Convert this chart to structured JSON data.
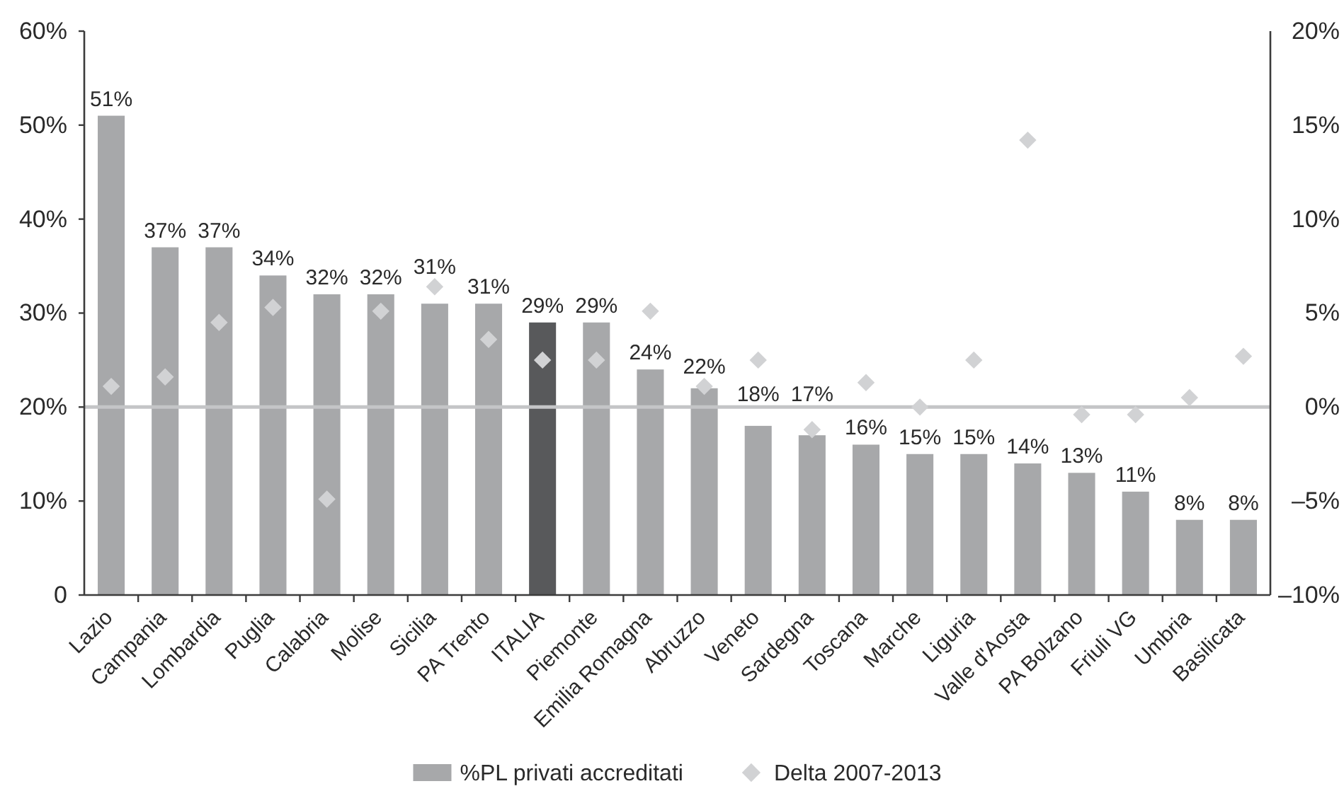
{
  "chart_data": {
    "type": "bar",
    "categories": [
      "Lazio",
      "Campania",
      "Lombardia",
      "Puglia",
      "Calabria",
      "Molise",
      "Sicilia",
      "PA Trento",
      "ITALIA",
      "Piemonte",
      "Emilia Romagna",
      "Abruzzo",
      "Veneto",
      "Sardegna",
      "Toscana",
      "Marche",
      "Liguria",
      "Valle d'Aosta",
      "PA Bolzano",
      "Friuli VG",
      "Umbria",
      "Basilicata"
    ],
    "series": [
      {
        "name": "%PL privati accreditati",
        "color": "#a7a8aa",
        "colors": [
          "#a7a8aa",
          "#a7a8aa",
          "#a7a8aa",
          "#a7a8aa",
          "#a7a8aa",
          "#a7a8aa",
          "#a7a8aa",
          "#a7a8aa",
          "#58595b",
          "#a7a8aa",
          "#a7a8aa",
          "#a7a8aa",
          "#a7a8aa",
          "#a7a8aa",
          "#a7a8aa",
          "#a7a8aa",
          "#a7a8aa",
          "#a7a8aa",
          "#a7a8aa",
          "#a7a8aa",
          "#a7a8aa",
          "#a7a8aa"
        ],
        "values": [
          51,
          37,
          37,
          34,
          32,
          32,
          31,
          31,
          29,
          29,
          24,
          22,
          18,
          17,
          16,
          15,
          15,
          14,
          13,
          11,
          8,
          8
        ],
        "value_labels": [
          "51%",
          "37%",
          "37%",
          "34%",
          "32%",
          "32%",
          "31%",
          "31%",
          "29%",
          "29%",
          "24%",
          "22%",
          "18%",
          "17%",
          "16%",
          "15%",
          "15%",
          "14%",
          "13%",
          "11%",
          "8%",
          "8%"
        ]
      },
      {
        "name": "Delta 2007-2013",
        "type": "scatter",
        "axis": "y2",
        "marker": "diamond",
        "color": "#d1d2d4",
        "values": [
          1.1,
          1.6,
          4.5,
          5.3,
          -4.9,
          5.1,
          6.4,
          3.6,
          2.5,
          2.5,
          5.1,
          1.1,
          2.5,
          -1.2,
          1.3,
          0.0,
          2.5,
          14.2,
          -0.4,
          -0.4,
          0.5,
          2.7
        ]
      }
    ],
    "ylim": [
      0,
      60
    ],
    "yticks": [
      0,
      {
        "value": 10,
        "label": "10%"
      },
      {
        "value": 20,
        "label": "20%"
      },
      {
        "value": 30,
        "label": "30%"
      },
      {
        "value": 40,
        "label": "40%"
      },
      {
        "value": 50,
        "label": "50%"
      },
      {
        "value": 60,
        "label": "60%"
      }
    ],
    "y2lim": [
      -10,
      20
    ],
    "y2ticks": [
      {
        "value": -10,
        "label": "–10%"
      },
      {
        "value": -5,
        "label": "–5%"
      },
      {
        "value": 0,
        "label": "0%"
      },
      {
        "value": 5,
        "label": "5%"
      },
      {
        "value": 10,
        "label": "10%"
      },
      {
        "value": 15,
        "label": "15%"
      },
      {
        "value": 20,
        "label": "20%"
      }
    ],
    "ref_lines": [
      {
        "axis": "y2",
        "value": 0,
        "color": "#c4c5c7"
      }
    ],
    "legend": "bottom"
  }
}
